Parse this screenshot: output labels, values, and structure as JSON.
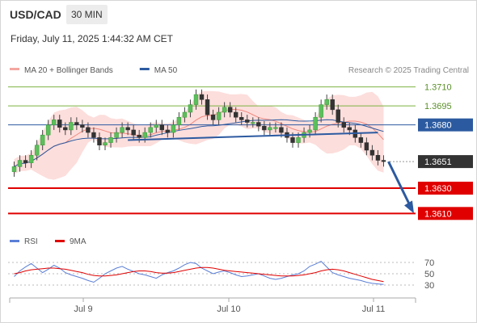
{
  "header": {
    "symbol": "USD/CAD",
    "timeframe": "30 MIN",
    "timestamp": "Friday, July 11, 2025 1:44:32 AM CET"
  },
  "chart_data": [
    {
      "type": "candlestick",
      "title": "",
      "legend": [
        {
          "name": "MA 20 + Bollinger Bands",
          "color": "#f4a6a0"
        },
        {
          "name": "MA 50",
          "color": "#2c5aa0"
        }
      ],
      "credit": "Research © 2025 Trading Central",
      "x_ticks": [
        "Jul 9",
        "Jul 10",
        "Jul 11"
      ],
      "price_levels": [
        {
          "label": "1.3710",
          "value": 1.371,
          "kind": "resistance",
          "color": "#7cb342"
        },
        {
          "label": "1.3695",
          "value": 1.3695,
          "kind": "resistance",
          "color": "#7cb342"
        },
        {
          "label": "1.3680",
          "value": 1.368,
          "kind": "pivot",
          "color": "#2c5aa0"
        },
        {
          "label": "1.3651",
          "value": 1.3651,
          "kind": "last",
          "color": "#333333"
        },
        {
          "label": "1.3630",
          "value": 1.363,
          "kind": "support",
          "color": "#e00000"
        },
        {
          "label": "1.3610",
          "value": 1.361,
          "kind": "support",
          "color": "#e00000"
        }
      ],
      "ylim": [
        1.36,
        1.372
      ],
      "close": [
        1.3647,
        1.3652,
        1.365,
        1.3656,
        1.3664,
        1.3672,
        1.368,
        1.3684,
        1.3678,
        1.3676,
        1.3682,
        1.368,
        1.3678,
        1.3674,
        1.367,
        1.3664,
        1.3666,
        1.367,
        1.3674,
        1.3678,
        1.3676,
        1.3672,
        1.367,
        1.3674,
        1.3678,
        1.368,
        1.3676,
        1.3674,
        1.368,
        1.3686,
        1.369,
        1.3696,
        1.3704,
        1.37,
        1.3688,
        1.3684,
        1.369,
        1.3694,
        1.369,
        1.3686,
        1.3684,
        1.3682,
        1.3682,
        1.3679,
        1.3676,
        1.3678,
        1.3678,
        1.3674,
        1.367,
        1.3666,
        1.367,
        1.3674,
        1.3676,
        1.3686,
        1.3696,
        1.37,
        1.3692,
        1.3682,
        1.3678,
        1.3676,
        1.367,
        1.3666,
        1.366,
        1.3656,
        1.3652,
        1.3651
      ],
      "trend_lines": [
        {
          "from_index": 20,
          "from_value": 1.3668,
          "to_index": 64,
          "to_value": 1.3674,
          "color": "#2c5aa0"
        }
      ],
      "forecast_arrow": {
        "from_value": 1.3651,
        "to_value": 1.361,
        "color": "#2c5aa0"
      }
    },
    {
      "type": "line",
      "title": "",
      "legend": [
        {
          "name": "RSI",
          "color": "#5b7fd6"
        },
        {
          "name": "9MA",
          "color": "#e00000"
        }
      ],
      "y_ticks": [
        "70",
        "50",
        "30"
      ],
      "ylim": [
        20,
        80
      ],
      "series": [
        {
          "name": "RSI",
          "values": [
            45,
            55,
            62,
            68,
            60,
            52,
            58,
            65,
            60,
            52,
            48,
            45,
            42,
            38,
            35,
            42,
            50,
            55,
            60,
            63,
            58,
            54,
            50,
            48,
            45,
            42,
            48,
            52,
            55,
            60,
            66,
            70,
            68,
            60,
            55,
            50,
            53,
            55,
            52,
            48,
            45,
            46,
            48,
            50,
            46,
            42,
            40,
            42,
            45,
            48,
            50,
            55,
            63,
            67,
            72,
            62,
            52,
            48,
            45,
            42,
            40,
            38,
            35,
            33,
            32,
            31
          ]
        },
        {
          "name": "9MA",
          "values": [
            50,
            52,
            55,
            57,
            58,
            59,
            60,
            60,
            59,
            58,
            56,
            54,
            52,
            49,
            47,
            46,
            46,
            47,
            48,
            50,
            52,
            54,
            55,
            55,
            54,
            52,
            51,
            51,
            52,
            54,
            56,
            58,
            60,
            61,
            61,
            60,
            58,
            56,
            55,
            54,
            53,
            52,
            51,
            50,
            49,
            48,
            47,
            46,
            46,
            46,
            47,
            48,
            50,
            52,
            55,
            57,
            58,
            57,
            55,
            52,
            49,
            46,
            43,
            40,
            38,
            36
          ]
        }
      ]
    }
  ]
}
